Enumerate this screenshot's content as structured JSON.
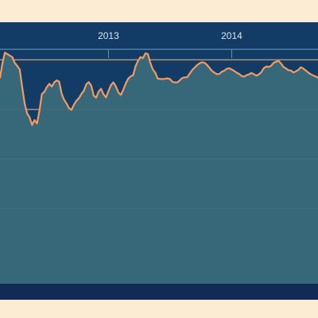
{
  "colors": {
    "page_background": "#fcecd4",
    "plot_background": "#123b66",
    "plot_border": "#0d2f54",
    "bottom_band": "#112a56",
    "line": "#f39a63",
    "area_fill": "#3a6a7a",
    "grid": "#b58e6c",
    "tick": "#6f8fa8"
  },
  "chart_data": {
    "type": "area",
    "title": "",
    "xlabel": "",
    "ylabel": "",
    "x_axis": {
      "position": "top",
      "ticks": [
        {
          "value": 2013,
          "label": "2013"
        },
        {
          "value": 2014,
          "label": "2014"
        }
      ],
      "range": [
        2012.12,
        2014.7
      ]
    },
    "y_axis": {
      "range": [
        0,
        100
      ],
      "gridlines": [
        30,
        50,
        70,
        90
      ],
      "tick_labels_visible": false
    },
    "grid": true,
    "legend": "none",
    "series": [
      {
        "x": [
          2012.12,
          2012.14,
          2012.16,
          2012.18,
          2012.2,
          2012.22,
          2012.24,
          2012.26,
          2012.28,
          2012.3,
          2012.32,
          2012.34,
          2012.36,
          2012.38,
          2012.4,
          2012.42,
          2012.44,
          2012.46,
          2012.48,
          2012.5,
          2012.52,
          2012.54,
          2012.56,
          2012.58,
          2012.6,
          2012.62,
          2012.64,
          2012.66,
          2012.68,
          2012.7,
          2012.72,
          2012.74,
          2012.76,
          2012.78,
          2012.8,
          2012.82,
          2012.84,
          2012.86,
          2012.88,
          2012.9,
          2012.92,
          2012.94,
          2012.96,
          2012.98,
          2013.0,
          2013.02,
          2013.04,
          2013.06,
          2013.08,
          2013.1,
          2013.12,
          2013.14,
          2013.16,
          2013.18,
          2013.2,
          2013.22,
          2013.24,
          2013.26,
          2013.28,
          2013.3,
          2013.32,
          2013.34,
          2013.36,
          2013.38,
          2013.4,
          2013.42,
          2013.44,
          2013.46,
          2013.48,
          2013.5,
          2013.52,
          2013.54,
          2013.56,
          2013.58,
          2013.6,
          2013.62,
          2013.64,
          2013.66,
          2013.68,
          2013.7,
          2013.72,
          2013.74,
          2013.76,
          2013.78,
          2013.8,
          2013.82,
          2013.84,
          2013.86,
          2013.88,
          2013.9,
          2013.92,
          2013.94,
          2013.96,
          2013.98,
          2014.0,
          2014.02,
          2014.04,
          2014.06,
          2014.08,
          2014.1,
          2014.12,
          2014.14,
          2014.16,
          2014.18,
          2014.2,
          2014.22,
          2014.24,
          2014.26,
          2014.28,
          2014.3,
          2014.32,
          2014.34,
          2014.36,
          2014.38,
          2014.4,
          2014.42,
          2014.44,
          2014.46,
          2014.48,
          2014.5,
          2014.52,
          2014.54,
          2014.56,
          2014.58,
          2014.6,
          2014.62,
          2014.64,
          2014.66,
          2014.68,
          2014.7
        ],
        "values": [
          82.8,
          88.7,
          92.9,
          92.3,
          91.7,
          91.1,
          88.7,
          87.5,
          86.1,
          79.0,
          72.4,
          68.4,
          66.8,
          63.7,
          65.7,
          64.3,
          69.4,
          76.2,
          77.1,
          79.0,
          80.3,
          79.2,
          80.9,
          81.7,
          81.2,
          76.4,
          73.9,
          72.4,
          70.5,
          69.8,
          71.9,
          73.5,
          74.5,
          76.2,
          77.5,
          80.1,
          81.0,
          79.6,
          75.6,
          74.7,
          77.2,
          78.3,
          76.1,
          74.8,
          77.4,
          79.8,
          80.9,
          79.3,
          76.9,
          75.8,
          77.9,
          80.4,
          82.4,
          83.3,
          83.8,
          87.4,
          89.6,
          91.1,
          90.7,
          92.6,
          92.3,
          88.7,
          86.1,
          84.8,
          82.4,
          82.3,
          82.2,
          82.4,
          82.5,
          82.2,
          81.1,
          80.9,
          80.9,
          81.8,
          82.7,
          82.9,
          83.0,
          84.5,
          85.9,
          86.9,
          87.9,
          88.6,
          89.0,
          88.8,
          87.9,
          86.7,
          85.5,
          84.8,
          84.2,
          84.3,
          85.2,
          85.6,
          86.4,
          86.6,
          86.1,
          85.5,
          84.8,
          84.3,
          83.5,
          83.2,
          83.8,
          84.1,
          84.7,
          84.2,
          83.6,
          84.1,
          85.0,
          86.6,
          87.3,
          87.1,
          87.6,
          88.8,
          89.2,
          89.6,
          88.5,
          87.1,
          86.5,
          85.8,
          85.7,
          84.9,
          85.3,
          85.9,
          87.0,
          86.5,
          85.7,
          84.9,
          84.2,
          83.7,
          83.3,
          82.8
        ]
      }
    ]
  }
}
